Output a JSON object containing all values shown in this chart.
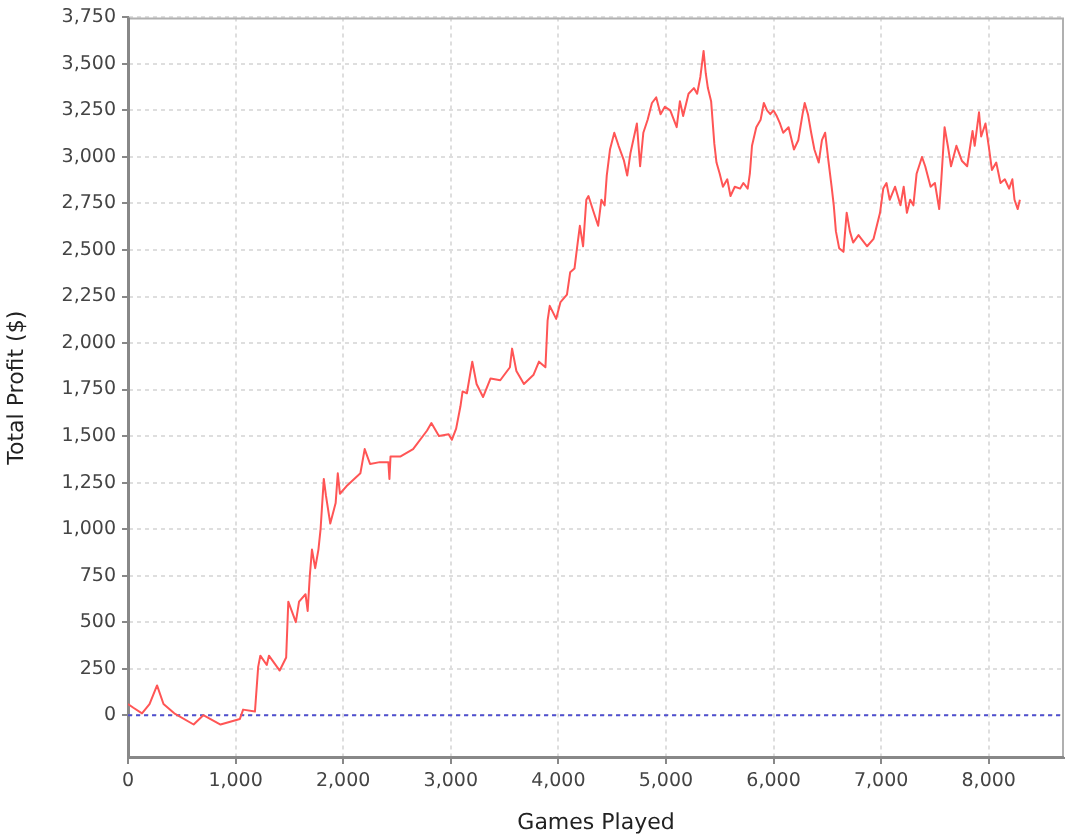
{
  "chart_data": {
    "type": "line",
    "xlabel": "Games Played",
    "ylabel": "Total Profit ($)",
    "xlim": [
      0,
      8700
    ],
    "ylim": [
      -230,
      3750
    ],
    "xticks": [
      0,
      {
        "value": 1000,
        "label": "1,000"
      },
      {
        "value": 2000,
        "label": "2,000"
      },
      {
        "value": 3000,
        "label": "3,000"
      },
      {
        "value": 4000,
        "label": "4,000"
      },
      {
        "value": 5000,
        "label": "5,000"
      },
      {
        "value": 6000,
        "label": "6,000"
      },
      {
        "value": 7000,
        "label": "7,000"
      },
      {
        "value": 8000,
        "label": "8,000"
      }
    ],
    "yticks": [
      0,
      250,
      500,
      750,
      {
        "value": 1000,
        "label": "1,000"
      },
      {
        "value": 1250,
        "label": "1,250"
      },
      {
        "value": 1500,
        "label": "1,500"
      },
      {
        "value": 1750,
        "label": "1,750"
      },
      {
        "value": 2000,
        "label": "2,000"
      },
      {
        "value": 2250,
        "label": "2,250"
      },
      {
        "value": 2500,
        "label": "2,500"
      },
      {
        "value": 2750,
        "label": "2,750"
      },
      {
        "value": 3000,
        "label": "3,000"
      },
      {
        "value": 3250,
        "label": "3,250"
      },
      {
        "value": 3500,
        "label": "3,500"
      },
      {
        "value": 3750,
        "label": "3,750"
      }
    ],
    "grid": true,
    "ref_lines": [
      {
        "axis": "y",
        "value": 0,
        "color": "#5050d0",
        "line_style": "dotted"
      }
    ],
    "x": [
      0,
      50,
      130,
      200,
      270,
      330,
      430,
      610,
      700,
      860,
      1040,
      1070,
      1180,
      1210,
      1230,
      1290,
      1310,
      1410,
      1470,
      1490,
      1560,
      1590,
      1650,
      1670,
      1690,
      1710,
      1740,
      1770,
      1790,
      1820,
      1840,
      1880,
      1930,
      1950,
      1970,
      2030,
      2160,
      2200,
      2250,
      2340,
      2420,
      2430,
      2440,
      2530,
      2650,
      2780,
      2820,
      2890,
      2980,
      3010,
      3050,
      3090,
      3110,
      3150,
      3200,
      3240,
      3300,
      3370,
      3460,
      3550,
      3570,
      3610,
      3680,
      3770,
      3820,
      3880,
      3900,
      3920,
      3980,
      4020,
      4080,
      4110,
      4150,
      4180,
      4200,
      4230,
      4260,
      4280,
      4330,
      4370,
      4400,
      4430,
      4450,
      4480,
      4520,
      4560,
      4610,
      4640,
      4670,
      4730,
      4760,
      4790,
      4830,
      4870,
      4910,
      4950,
      4990,
      5040,
      5100,
      5130,
      5160,
      5210,
      5260,
      5290,
      5320,
      5350,
      5370,
      5390,
      5420,
      5450,
      5470,
      5500,
      5530,
      5570,
      5600,
      5640,
      5690,
      5720,
      5760,
      5780,
      5800,
      5840,
      5880,
      5910,
      5940,
      5970,
      6000,
      6030,
      6060,
      6090,
      6140,
      6190,
      6230,
      6270,
      6290,
      6320,
      6350,
      6380,
      6420,
      6450,
      6480,
      6510,
      6540,
      6560,
      6580,
      6610,
      6650,
      6680,
      6710,
      6740,
      6790,
      6870,
      6930,
      6960,
      6990,
      7020,
      7050,
      7080,
      7130,
      7180,
      7210,
      7240,
      7270,
      7300,
      7330,
      7380,
      7410,
      7460,
      7500,
      7540,
      7560,
      7590,
      7620,
      7650,
      7700,
      7750,
      7800,
      7850,
      7870,
      7910,
      7930,
      7970,
      8000,
      8030,
      8070,
      8110,
      8150,
      8190,
      8220,
      8240,
      8270,
      8290
    ],
    "series": [
      {
        "color": "#ff5555",
        "values": [
          60,
          40,
          10,
          60,
          160,
          60,
          10,
          -50,
          0,
          -50,
          -20,
          30,
          20,
          260,
          320,
          270,
          320,
          240,
          310,
          610,
          500,
          610,
          650,
          560,
          750,
          890,
          790,
          890,
          1000,
          1270,
          1180,
          1030,
          1140,
          1300,
          1190,
          1230,
          1300,
          1430,
          1350,
          1360,
          1360,
          1270,
          1390,
          1390,
          1430,
          1530,
          1570,
          1500,
          1510,
          1480,
          1540,
          1660,
          1740,
          1730,
          1900,
          1780,
          1710,
          1810,
          1800,
          1870,
          1970,
          1850,
          1780,
          1830,
          1900,
          1870,
          2120,
          2200,
          2130,
          2220,
          2260,
          2380,
          2400,
          2540,
          2630,
          2520,
          2770,
          2790,
          2700,
          2630,
          2770,
          2740,
          2900,
          3040,
          3130,
          3060,
          2980,
          2900,
          3020,
          3180,
          2950,
          3130,
          3200,
          3290,
          3320,
          3230,
          3270,
          3250,
          3160,
          3300,
          3220,
          3340,
          3370,
          3340,
          3430,
          3570,
          3450,
          3370,
          3300,
          3070,
          2970,
          2910,
          2840,
          2880,
          2790,
          2840,
          2830,
          2860,
          2830,
          2910,
          3060,
          3160,
          3200,
          3290,
          3250,
          3230,
          3250,
          3220,
          3180,
          3130,
          3160,
          3040,
          3090,
          3230,
          3290,
          3230,
          3130,
          3040,
          2970,
          3090,
          3130,
          2980,
          2840,
          2740,
          2600,
          2510,
          2490,
          2700,
          2600,
          2540,
          2580,
          2520,
          2560,
          2630,
          2700,
          2830,
          2860,
          2770,
          2840,
          2740,
          2840,
          2700,
          2770,
          2740,
          2910,
          3000,
          2950,
          2840,
          2860,
          2720,
          2880,
          3160,
          3060,
          2950,
          3060,
          2980,
          2950,
          3140,
          3060,
          3240,
          3110,
          3180,
          3060,
          2930,
          2970,
          2860,
          2880,
          2830,
          2880,
          2770,
          2720,
          2770
        ]
      }
    ]
  }
}
